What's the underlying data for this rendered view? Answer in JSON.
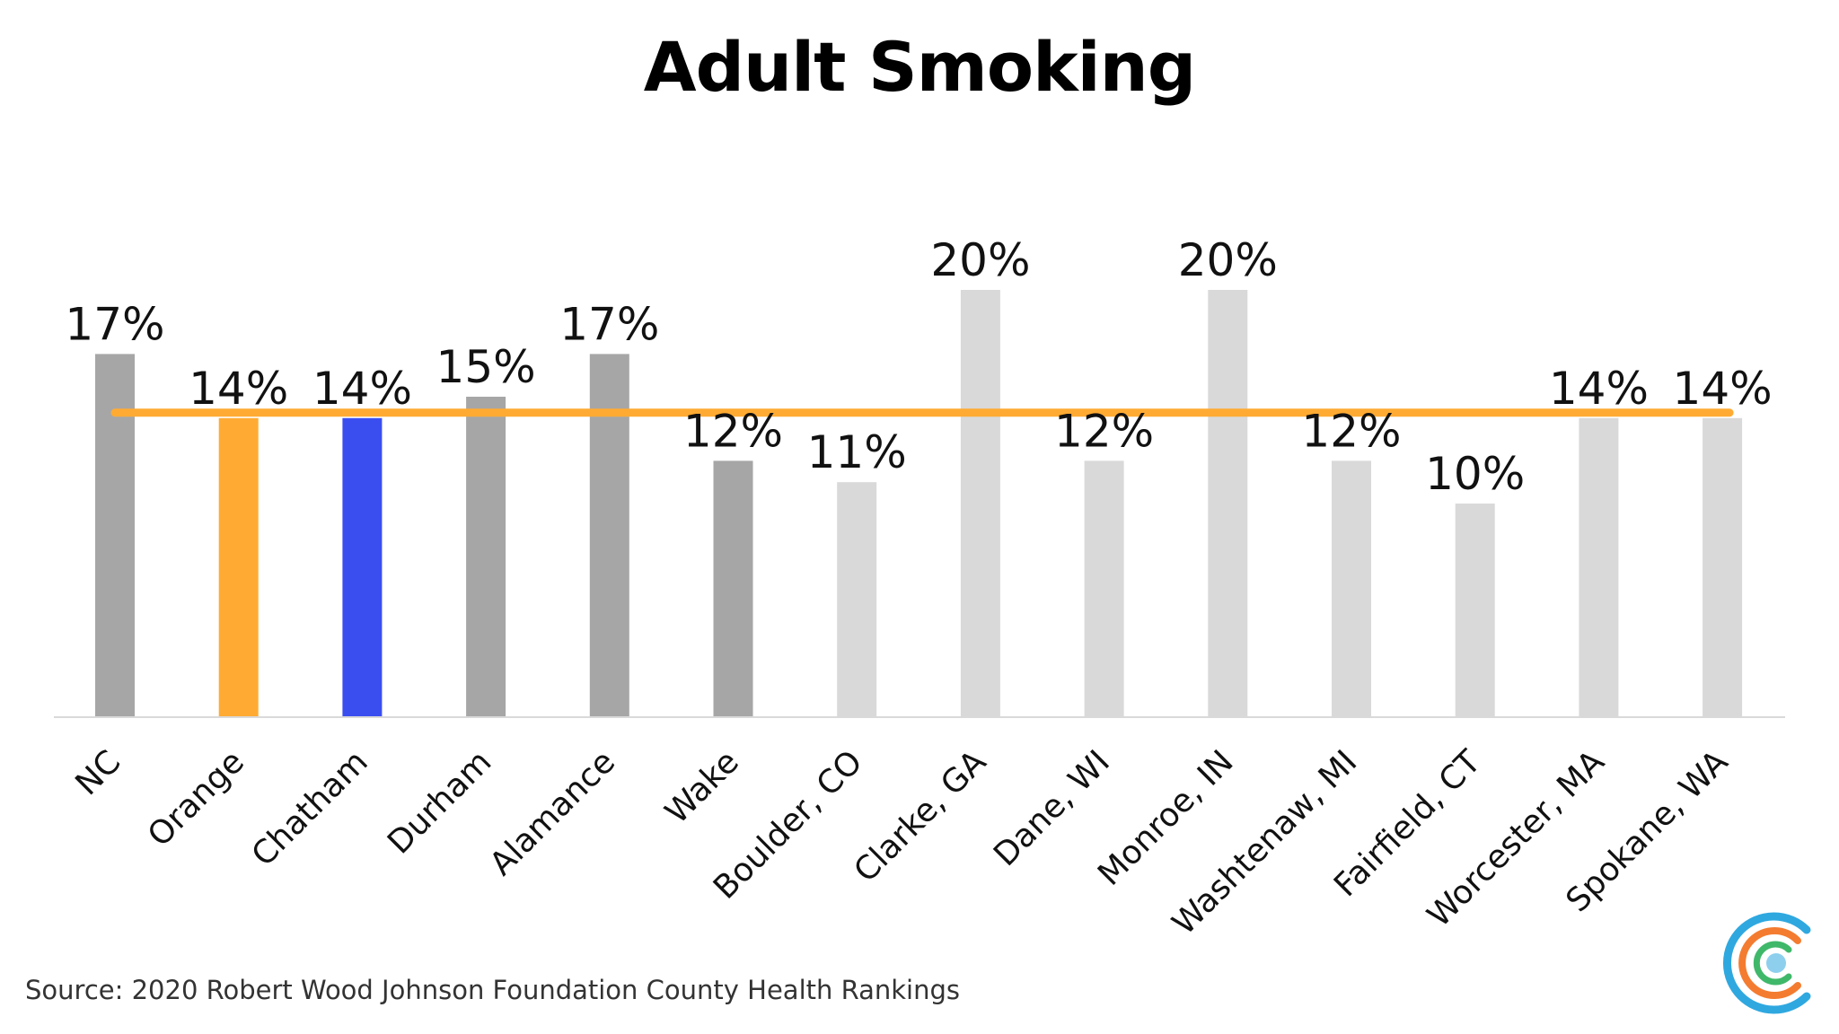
{
  "chart_data": {
    "type": "bar",
    "title": "Adult Smoking",
    "categories": [
      "NC",
      "Orange",
      "Chatham",
      "Durham",
      "Alamance",
      "Wake",
      "Boulder, CO",
      "Clarke, GA",
      "Dane, WI",
      "Monroe, IN",
      "Washtenaw, MI",
      "Fairfield, CT",
      "Worcester, MA",
      "Spokane, WA"
    ],
    "values": [
      17,
      14,
      14,
      15,
      17,
      12,
      11,
      20,
      12,
      20,
      12,
      10,
      14,
      14
    ],
    "value_labels": [
      "17%",
      "14%",
      "14%",
      "15%",
      "17%",
      "12%",
      "11%",
      "20%",
      "12%",
      "20%",
      "12%",
      "10%",
      "14%",
      "14%"
    ],
    "bar_colors": [
      "#a6a6a6",
      "#ffab33",
      "#3a4ef0",
      "#a6a6a6",
      "#a6a6a6",
      "#a6a6a6",
      "#d9d9d9",
      "#d9d9d9",
      "#d9d9d9",
      "#d9d9d9",
      "#d9d9d9",
      "#d9d9d9",
      "#d9d9d9",
      "#d9d9d9"
    ],
    "reference_line": {
      "value": 14,
      "color": "#ffab33"
    },
    "xlabel": "",
    "ylabel": "",
    "ylim": [
      0,
      20
    ],
    "grid": false,
    "legend": "none"
  },
  "source": "Source: 2020 Robert Wood Johnson Foundation County Health Rankings",
  "logo": {
    "colors": [
      "#2fa8e0",
      "#f47c30",
      "#40b86a",
      "#8ecfee"
    ]
  }
}
